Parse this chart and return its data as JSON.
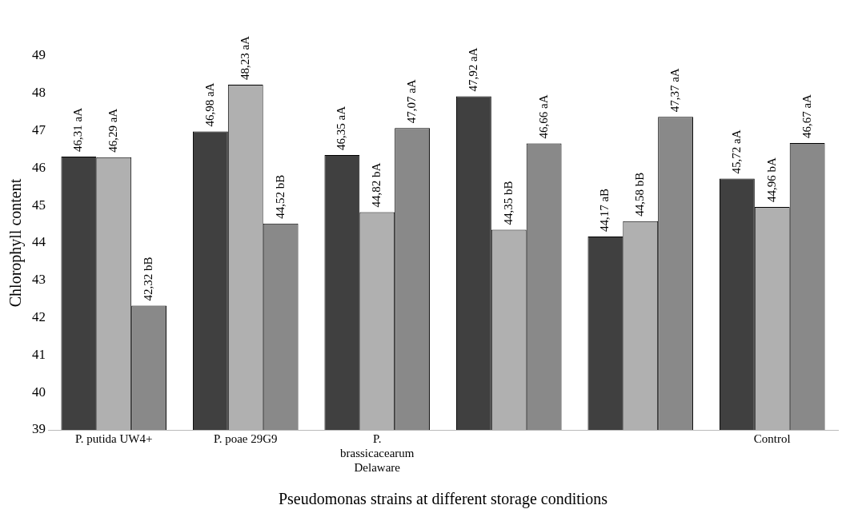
{
  "chart_data": {
    "type": "bar",
    "ylabel": "Chlorophyll content",
    "xlabel": "Pseudomonas strains at different storage conditions",
    "categories": [
      "P. putida UW4+",
      "P. poae 29G9",
      "P. brassicacearum Delaware",
      null,
      null,
      "Control"
    ],
    "series": [
      {
        "color": "#404040",
        "values": [
          46.31,
          46.98,
          46.35,
          47.92,
          44.17,
          45.72
        ],
        "value_labels": [
          "46,31 aA",
          "46,98 aA",
          "46,35 aA",
          "47,92 aA",
          "44,17 aB",
          "45,72 aA"
        ]
      },
      {
        "color": "#b0b0b0",
        "values": [
          46.29,
          48.23,
          44.82,
          44.35,
          44.58,
          44.96
        ],
        "value_labels": [
          "46,29 aA",
          "48,23 aA",
          "44,82 bA",
          "44,35 bB",
          "44,58 bB",
          "44,96 bA"
        ]
      },
      {
        "color": "#898989",
        "values": [
          42.32,
          44.52,
          47.07,
          46.66,
          47.37,
          46.67
        ],
        "value_labels": [
          "42,32 bB",
          "44,52 bB",
          "47,07 aA",
          "46,66 aA",
          "47,37 aA",
          "46,67 aA"
        ]
      }
    ],
    "ylim": [
      39,
      49
    ],
    "yticks": [
      39,
      40,
      41,
      42,
      43,
      44,
      45,
      46,
      47,
      48,
      49
    ],
    "grid": false,
    "legend": false
  }
}
